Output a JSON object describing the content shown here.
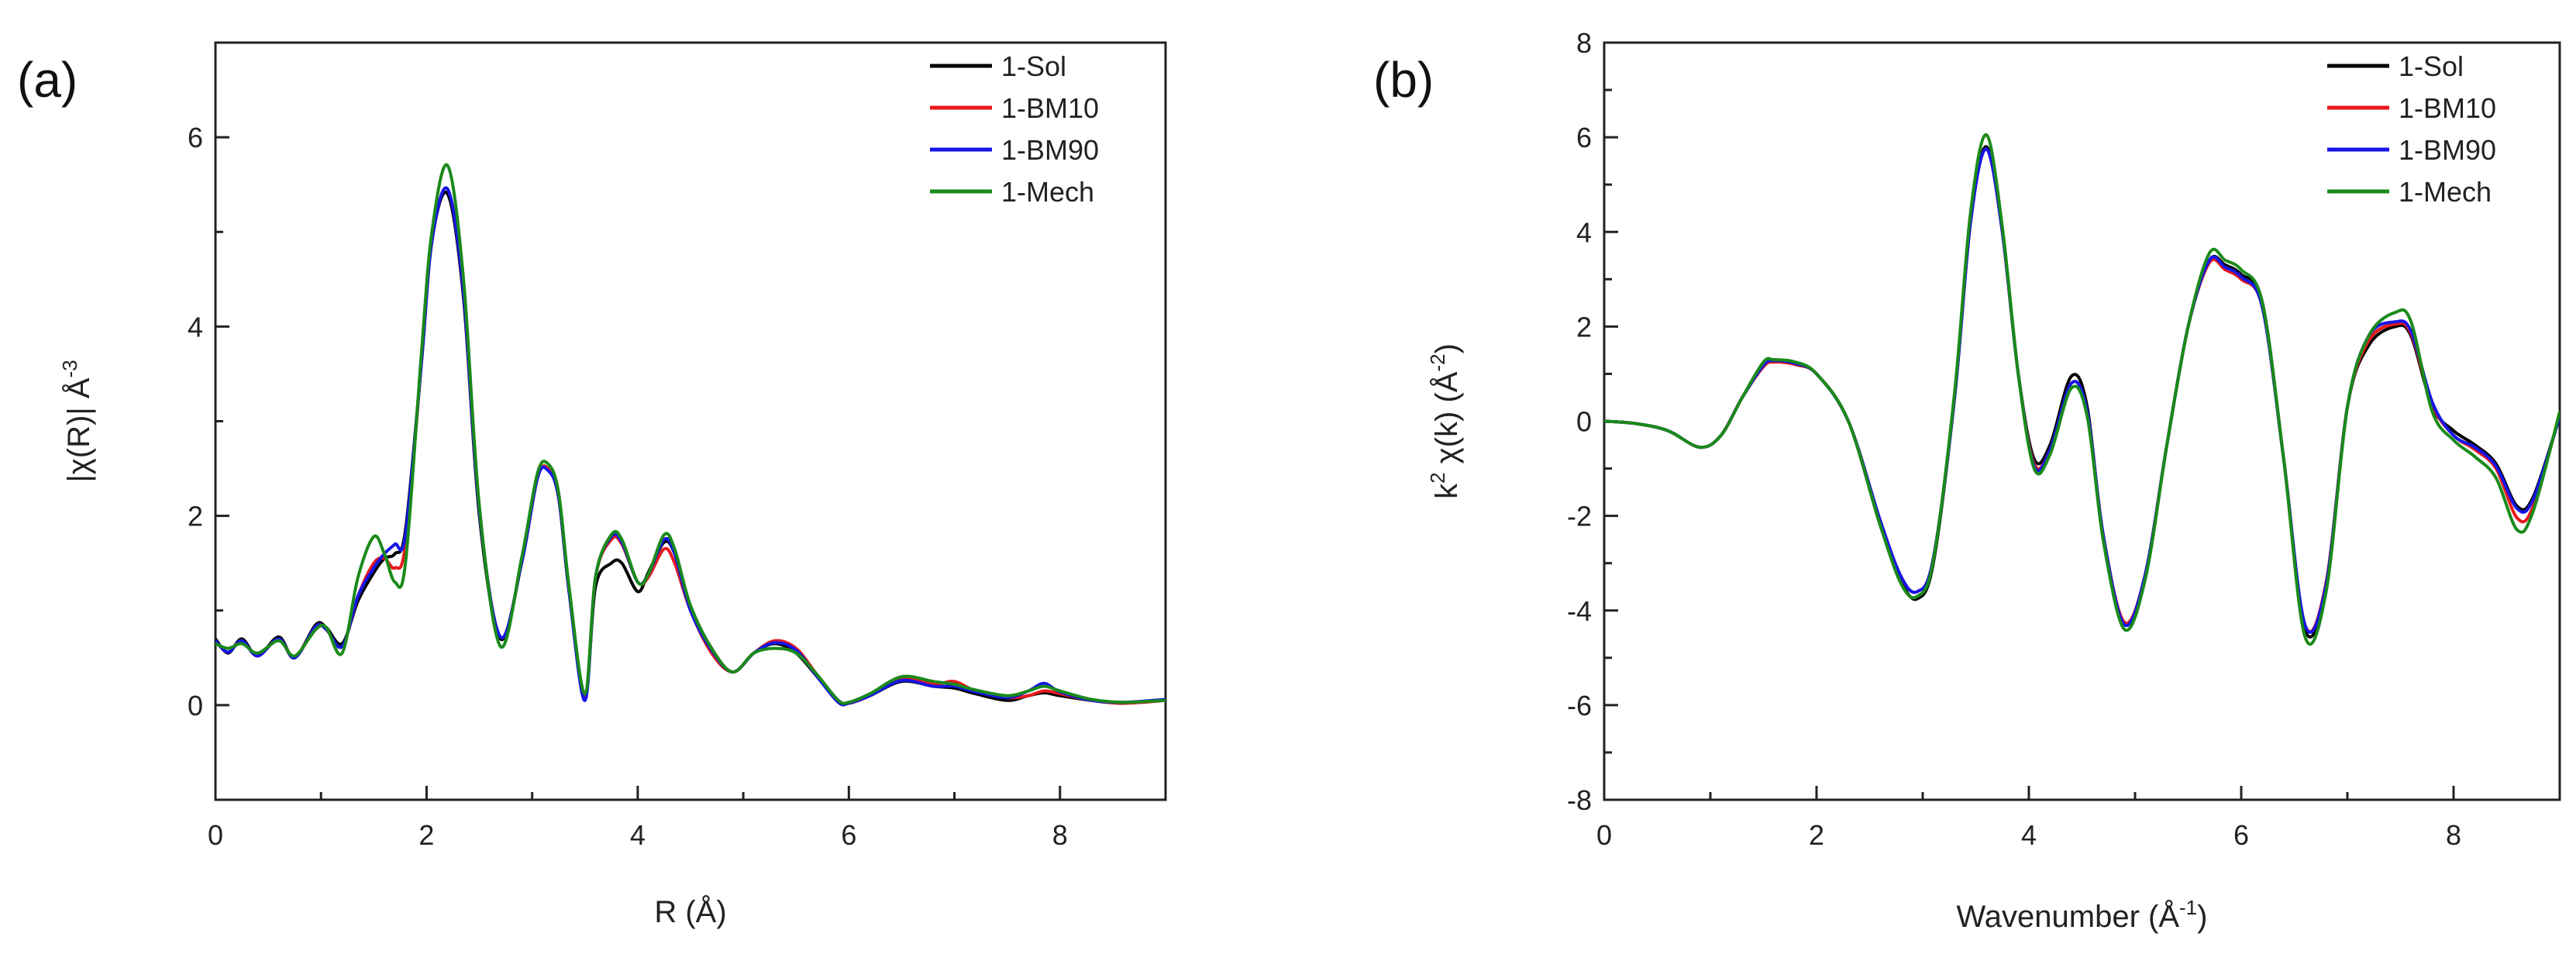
{
  "colors": {
    "1-Sol": "#000000",
    "1-BM10": "#e8181b",
    "1-BM90": "#1515e6",
    "1-Mech": "#1a8a1a"
  },
  "chart_data": [
    {
      "panel_label": "(a)",
      "type": "line",
      "xlabel": "R (Å)",
      "ylabel_main": "|χ(R)| Å",
      "ylabel_sup": "-3",
      "xlim": [
        0,
        9
      ],
      "ylim": [
        -1,
        7
      ],
      "x_ticks": [
        0,
        2,
        4,
        6,
        8
      ],
      "y_ticks": [
        0,
        2,
        4,
        6
      ],
      "legend": [
        "1-Sol",
        "1-BM10",
        "1-BM90",
        "1-Mech"
      ],
      "legend_position": "top-right",
      "series": [
        {
          "name": "1-Sol",
          "x": [
            0,
            0.12,
            0.25,
            0.4,
            0.6,
            0.75,
            0.95,
            1.05,
            1.2,
            1.35,
            1.5,
            1.6,
            1.7,
            1.8,
            1.95,
            2.05,
            2.2,
            2.35,
            2.5,
            2.7,
            2.9,
            3.05,
            3.15,
            3.25,
            3.35,
            3.5,
            3.6,
            3.75,
            3.85,
            4.0,
            4.1,
            4.25,
            4.35,
            4.5,
            4.7,
            4.9,
            5.1,
            5.3,
            5.5,
            5.7,
            5.9,
            6.0,
            6.2,
            6.5,
            6.8,
            7.0,
            7.2,
            7.5,
            7.7,
            7.85,
            8.0,
            8.3,
            8.6,
            9.0
          ],
          "y": [
            0.7,
            0.55,
            0.7,
            0.52,
            0.72,
            0.5,
            0.85,
            0.82,
            0.65,
            1.1,
            1.4,
            1.55,
            1.6,
            1.85,
            3.6,
            4.9,
            5.4,
            4.3,
            2.0,
            0.7,
            1.5,
            2.4,
            2.5,
            2.2,
            1.2,
            0.1,
            1.25,
            1.5,
            1.5,
            1.2,
            1.4,
            1.72,
            1.6,
            1.05,
            0.6,
            0.35,
            0.55,
            0.65,
            0.55,
            0.3,
            0.05,
            0.02,
            0.1,
            0.25,
            0.2,
            0.18,
            0.12,
            0.05,
            0.1,
            0.13,
            0.1,
            0.05,
            0.02,
            0.05
          ]
        },
        {
          "name": "1-BM10",
          "x": [
            0,
            0.12,
            0.25,
            0.4,
            0.6,
            0.75,
            0.95,
            1.05,
            1.2,
            1.35,
            1.5,
            1.6,
            1.7,
            1.8,
            1.95,
            2.05,
            2.2,
            2.35,
            2.5,
            2.7,
            2.9,
            3.05,
            3.15,
            3.25,
            3.35,
            3.5,
            3.6,
            3.75,
            3.85,
            4.0,
            4.1,
            4.25,
            4.35,
            4.5,
            4.7,
            4.9,
            5.1,
            5.3,
            5.5,
            5.7,
            5.9,
            6.0,
            6.2,
            6.5,
            6.8,
            7.0,
            7.2,
            7.5,
            7.7,
            7.85,
            8.0,
            8.3,
            8.6,
            9.0
          ],
          "y": [
            0.68,
            0.56,
            0.68,
            0.52,
            0.7,
            0.5,
            0.83,
            0.8,
            0.62,
            1.15,
            1.5,
            1.55,
            1.45,
            1.7,
            3.6,
            4.9,
            5.45,
            4.35,
            2.05,
            0.72,
            1.5,
            2.4,
            2.5,
            2.2,
            1.2,
            0.1,
            1.35,
            1.75,
            1.7,
            1.3,
            1.35,
            1.65,
            1.5,
            1.0,
            0.55,
            0.35,
            0.55,
            0.68,
            0.6,
            0.32,
            0.05,
            0.02,
            0.1,
            0.28,
            0.22,
            0.25,
            0.15,
            0.08,
            0.1,
            0.15,
            0.12,
            0.05,
            0.02,
            0.05
          ]
        },
        {
          "name": "1-BM90",
          "x": [
            0,
            0.12,
            0.25,
            0.4,
            0.6,
            0.75,
            0.95,
            1.05,
            1.2,
            1.35,
            1.5,
            1.6,
            1.7,
            1.8,
            1.95,
            2.05,
            2.2,
            2.35,
            2.5,
            2.7,
            2.9,
            3.05,
            3.15,
            3.25,
            3.35,
            3.5,
            3.6,
            3.75,
            3.85,
            4.0,
            4.1,
            4.25,
            4.35,
            4.5,
            4.7,
            4.9,
            5.1,
            5.3,
            5.5,
            5.7,
            5.9,
            6.0,
            6.2,
            6.5,
            6.8,
            7.0,
            7.2,
            7.5,
            7.7,
            7.85,
            8.0,
            8.3,
            8.6,
            9.0
          ],
          "y": [
            0.68,
            0.56,
            0.68,
            0.52,
            0.7,
            0.5,
            0.83,
            0.8,
            0.62,
            1.15,
            1.45,
            1.6,
            1.7,
            1.8,
            3.6,
            4.9,
            5.45,
            4.35,
            2.05,
            0.72,
            1.5,
            2.4,
            2.48,
            2.2,
            1.2,
            0.05,
            1.35,
            1.78,
            1.72,
            1.3,
            1.38,
            1.75,
            1.6,
            1.0,
            0.58,
            0.35,
            0.55,
            0.66,
            0.58,
            0.3,
            0.03,
            0.02,
            0.1,
            0.26,
            0.2,
            0.2,
            0.14,
            0.08,
            0.15,
            0.23,
            0.14,
            0.05,
            0.03,
            0.06
          ]
        },
        {
          "name": "1-Mech",
          "x": [
            0,
            0.12,
            0.25,
            0.4,
            0.6,
            0.75,
            0.95,
            1.05,
            1.2,
            1.35,
            1.5,
            1.6,
            1.7,
            1.8,
            1.95,
            2.05,
            2.2,
            2.35,
            2.5,
            2.7,
            2.9,
            3.05,
            3.15,
            3.25,
            3.35,
            3.5,
            3.6,
            3.75,
            3.85,
            4.0,
            4.1,
            4.25,
            4.35,
            4.5,
            4.7,
            4.9,
            5.1,
            5.3,
            5.5,
            5.7,
            5.9,
            6.0,
            6.2,
            6.5,
            6.8,
            7.0,
            7.2,
            7.5,
            7.7,
            7.85,
            8.0,
            8.3,
            8.6,
            9.0
          ],
          "y": [
            0.65,
            0.6,
            0.65,
            0.55,
            0.68,
            0.52,
            0.8,
            0.82,
            0.55,
            1.35,
            1.78,
            1.6,
            1.3,
            1.5,
            3.7,
            5.0,
            5.7,
            4.5,
            2.1,
            0.62,
            1.55,
            2.45,
            2.55,
            2.25,
            1.25,
            0.12,
            1.35,
            1.8,
            1.75,
            1.3,
            1.38,
            1.8,
            1.65,
            1.05,
            0.6,
            0.35,
            0.55,
            0.6,
            0.55,
            0.32,
            0.05,
            0.03,
            0.12,
            0.3,
            0.25,
            0.22,
            0.16,
            0.1,
            0.15,
            0.2,
            0.15,
            0.06,
            0.03,
            0.05
          ]
        }
      ]
    },
    {
      "panel_label": "(b)",
      "type": "line",
      "xlabel_main": "Wavenumber (Å",
      "xlabel_sup": "-1",
      "xlabel_end": ")",
      "ylabel_k": "k",
      "ylabel_k_sup": "2",
      "ylabel_main": " χ(k) (Å",
      "ylabel_sup": "-2",
      "ylabel_end": ")",
      "xlim": [
        0,
        9
      ],
      "ylim": [
        -8,
        8
      ],
      "x_ticks": [
        0,
        2,
        4,
        6,
        8
      ],
      "y_ticks": [
        -8,
        -6,
        -4,
        -2,
        0,
        2,
        4,
        6,
        8
      ],
      "legend": [
        "1-Sol",
        "1-BM10",
        "1-BM90",
        "1-Mech"
      ],
      "legend_position": "top-right",
      "series": [
        {
          "name": "1-Sol",
          "x": [
            0,
            0.3,
            0.6,
            0.9,
            1.1,
            1.3,
            1.5,
            1.6,
            1.8,
            2.0,
            2.3,
            2.6,
            2.8,
            2.95,
            3.1,
            3.3,
            3.45,
            3.6,
            3.75,
            3.9,
            4.05,
            4.2,
            4.4,
            4.55,
            4.7,
            4.9,
            5.1,
            5.3,
            5.5,
            5.7,
            5.85,
            6.0,
            6.2,
            6.4,
            6.6,
            6.8,
            7.0,
            7.2,
            7.45,
            7.6,
            7.8,
            8.0,
            8.2,
            8.4,
            8.6,
            8.75,
            9.0
          ],
          "y": [
            0,
            -0.05,
            -0.2,
            -0.55,
            -0.3,
            0.5,
            1.2,
            1.3,
            1.2,
            1.0,
            0.0,
            -2.2,
            -3.4,
            -3.75,
            -3.0,
            0.5,
            4.2,
            5.8,
            4.0,
            1.0,
            -0.8,
            -0.5,
            0.95,
            0.3,
            -2.5,
            -4.3,
            -3.2,
            -0.5,
            2.0,
            3.4,
            3.3,
            3.1,
            2.5,
            -0.8,
            -4.4,
            -3.5,
            0.3,
            1.6,
            2.0,
            1.8,
            0.3,
            -0.2,
            -0.5,
            -0.9,
            -1.8,
            -1.6,
            0.1
          ]
        },
        {
          "name": "1-BM10",
          "x": [
            0,
            0.3,
            0.6,
            0.9,
            1.1,
            1.3,
            1.5,
            1.6,
            1.8,
            2.0,
            2.3,
            2.6,
            2.8,
            2.95,
            3.1,
            3.3,
            3.45,
            3.6,
            3.75,
            3.9,
            4.05,
            4.2,
            4.4,
            4.55,
            4.7,
            4.9,
            5.1,
            5.3,
            5.5,
            5.7,
            5.85,
            6.0,
            6.2,
            6.4,
            6.6,
            6.8,
            7.0,
            7.2,
            7.45,
            7.6,
            7.8,
            8.0,
            8.2,
            8.4,
            8.6,
            8.75,
            9.0
          ],
          "y": [
            0,
            -0.05,
            -0.2,
            -0.55,
            -0.3,
            0.5,
            1.15,
            1.25,
            1.2,
            1.0,
            0.0,
            -2.1,
            -3.3,
            -3.6,
            -2.9,
            0.5,
            4.2,
            5.75,
            4.0,
            1.0,
            -0.9,
            -0.6,
            0.8,
            0.2,
            -2.4,
            -4.25,
            -3.2,
            -0.5,
            2.0,
            3.35,
            3.2,
            3.0,
            2.4,
            -0.8,
            -4.3,
            -3.4,
            0.3,
            1.7,
            2.05,
            1.85,
            0.35,
            -0.3,
            -0.6,
            -1.0,
            -2.05,
            -1.8,
            0.15
          ]
        },
        {
          "name": "1-BM90",
          "x": [
            0,
            0.3,
            0.6,
            0.9,
            1.1,
            1.3,
            1.5,
            1.6,
            1.8,
            2.0,
            2.3,
            2.6,
            2.8,
            2.95,
            3.1,
            3.3,
            3.45,
            3.6,
            3.75,
            3.9,
            4.05,
            4.2,
            4.4,
            4.55,
            4.7,
            4.9,
            5.1,
            5.3,
            5.5,
            5.7,
            5.85,
            6.0,
            6.2,
            6.4,
            6.6,
            6.8,
            7.0,
            7.2,
            7.45,
            7.6,
            7.8,
            8.0,
            8.2,
            8.4,
            8.6,
            8.75,
            9.0
          ],
          "y": [
            0,
            -0.05,
            -0.2,
            -0.55,
            -0.3,
            0.5,
            1.18,
            1.28,
            1.22,
            1.0,
            0.0,
            -2.1,
            -3.3,
            -3.6,
            -2.9,
            0.5,
            4.2,
            5.75,
            4.0,
            1.0,
            -0.95,
            -0.6,
            0.8,
            0.2,
            -2.4,
            -4.3,
            -3.2,
            -0.5,
            2.0,
            3.4,
            3.25,
            3.05,
            2.4,
            -0.8,
            -4.3,
            -3.45,
            0.3,
            1.8,
            2.1,
            1.9,
            0.4,
            -0.3,
            -0.55,
            -0.95,
            -1.85,
            -1.65,
            0.1
          ]
        },
        {
          "name": "1-Mech",
          "x": [
            0,
            0.3,
            0.6,
            0.9,
            1.1,
            1.3,
            1.5,
            1.6,
            1.8,
            2.0,
            2.3,
            2.6,
            2.8,
            2.95,
            3.1,
            3.3,
            3.45,
            3.6,
            3.75,
            3.9,
            4.05,
            4.2,
            4.4,
            4.55,
            4.7,
            4.9,
            5.1,
            5.3,
            5.5,
            5.7,
            5.85,
            6.0,
            6.2,
            6.4,
            6.6,
            6.8,
            7.0,
            7.2,
            7.45,
            7.6,
            7.8,
            8.0,
            8.2,
            8.4,
            8.6,
            8.75,
            9.0
          ],
          "y": [
            0,
            -0.05,
            -0.2,
            -0.55,
            -0.3,
            0.5,
            1.25,
            1.3,
            1.25,
            1.0,
            0.0,
            -2.2,
            -3.45,
            -3.7,
            -2.95,
            0.6,
            4.4,
            6.05,
            4.1,
            1.0,
            -1.0,
            -0.7,
            0.7,
            0.1,
            -2.5,
            -4.4,
            -3.3,
            -0.5,
            2.0,
            3.55,
            3.4,
            3.2,
            2.5,
            -0.8,
            -4.55,
            -3.6,
            0.3,
            1.8,
            2.3,
            2.1,
            0.2,
            -0.4,
            -0.75,
            -1.2,
            -2.3,
            -1.9,
            0.2
          ]
        }
      ]
    }
  ]
}
